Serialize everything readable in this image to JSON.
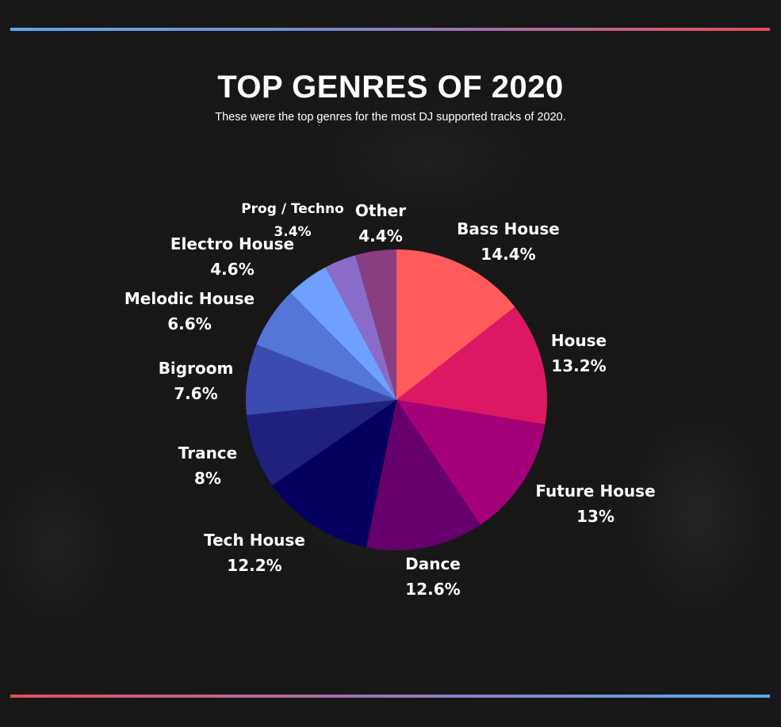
{
  "header": {
    "title": "TOP GENRES OF 2020",
    "subtitle": "These were the top genres for the most DJ supported tracks of 2020."
  },
  "chart_data": {
    "type": "pie",
    "title": "TOP GENRES OF 2020",
    "subtitle": "These were the top genres for the most DJ supported tracks of 2020.",
    "unit": "%",
    "start_angle": "12 o'clock",
    "direction": "clockwise",
    "slices": [
      {
        "label": "Bass House",
        "value": 14.4,
        "value_label": "14.4%",
        "color": "#ff5a5c"
      },
      {
        "label": "House",
        "value": 13.2,
        "value_label": "13.2%",
        "color": "#dc1865"
      },
      {
        "label": "Future House",
        "value": 13,
        "value_label": "13%",
        "color": "#a3007a"
      },
      {
        "label": "Dance",
        "value": 12.6,
        "value_label": "12.6%",
        "color": "#65006d"
      },
      {
        "label": "Tech House",
        "value": 12.2,
        "value_label": "12.2%",
        "color": "#050060"
      },
      {
        "label": "Trance",
        "value": 8,
        "value_label": "8%",
        "color": "#20217f"
      },
      {
        "label": "Bigroom",
        "value": 7.6,
        "value_label": "7.6%",
        "color": "#3b4bb0"
      },
      {
        "label": "Melodic House",
        "value": 6.6,
        "value_label": "6.6%",
        "color": "#5476d8"
      },
      {
        "label": "Electro House",
        "value": 4.6,
        "value_label": "4.6%",
        "color": "#6fa0ff"
      },
      {
        "label": "Prog / Techno",
        "value": 3.4,
        "value_label": "3.4%",
        "color": "#8a6bc8"
      },
      {
        "label": "Other",
        "value": 4.4,
        "value_label": "4.4%",
        "color": "#8a3e82"
      }
    ]
  }
}
